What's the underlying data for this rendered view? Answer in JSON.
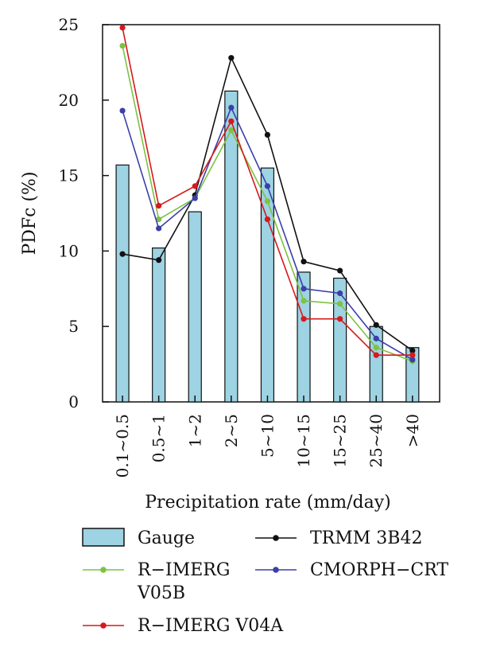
{
  "chart_data": {
    "type": "bar",
    "xlabel": "Precipitation rate (mm/day)",
    "ylabel": "PDFc (%)",
    "ylim": [
      0,
      25
    ],
    "yticks": [
      0,
      5,
      10,
      15,
      20,
      25
    ],
    "categories": [
      "0.1~0.5",
      "0.5~1",
      "1~2",
      "2~5",
      "5~10",
      "10~15",
      "15~25",
      "25~40",
      ">40"
    ],
    "bar_series": {
      "name": "Gauge",
      "color": "#9dd3e3",
      "values": [
        15.7,
        10.2,
        12.6,
        20.6,
        15.5,
        8.6,
        8.2,
        5.0,
        3.6
      ]
    },
    "line_series": [
      {
        "name": "TRMM 3B42",
        "color": "#111111",
        "values": [
          9.8,
          9.4,
          13.7,
          22.8,
          17.7,
          9.3,
          8.7,
          5.1,
          3.4
        ]
      },
      {
        "name": "R−IMERG V05B",
        "color": "#7dc242",
        "values": [
          23.6,
          12.1,
          13.5,
          18.0,
          13.3,
          6.7,
          6.5,
          3.6,
          2.7
        ]
      },
      {
        "name": "CMORPH−CRT",
        "color": "#3b3fa8",
        "values": [
          19.3,
          11.5,
          13.5,
          19.5,
          14.3,
          7.5,
          7.2,
          4.2,
          2.8
        ]
      },
      {
        "name": "R−IMERG V04A",
        "color": "#d7191c",
        "values": [
          24.8,
          13.0,
          14.3,
          18.6,
          12.1,
          5.5,
          5.5,
          3.1,
          3.1
        ]
      }
    ],
    "legend": {
      "gauge": "Gauge",
      "trmm": "TRMM 3B42",
      "v05b_line1": "R−IMERG",
      "v05b_line2": "V05B",
      "cmorph": "CMORPH−CRT",
      "v04a": "R−IMERG V04A"
    },
    "grid": false,
    "legend_placement": "bottom"
  }
}
